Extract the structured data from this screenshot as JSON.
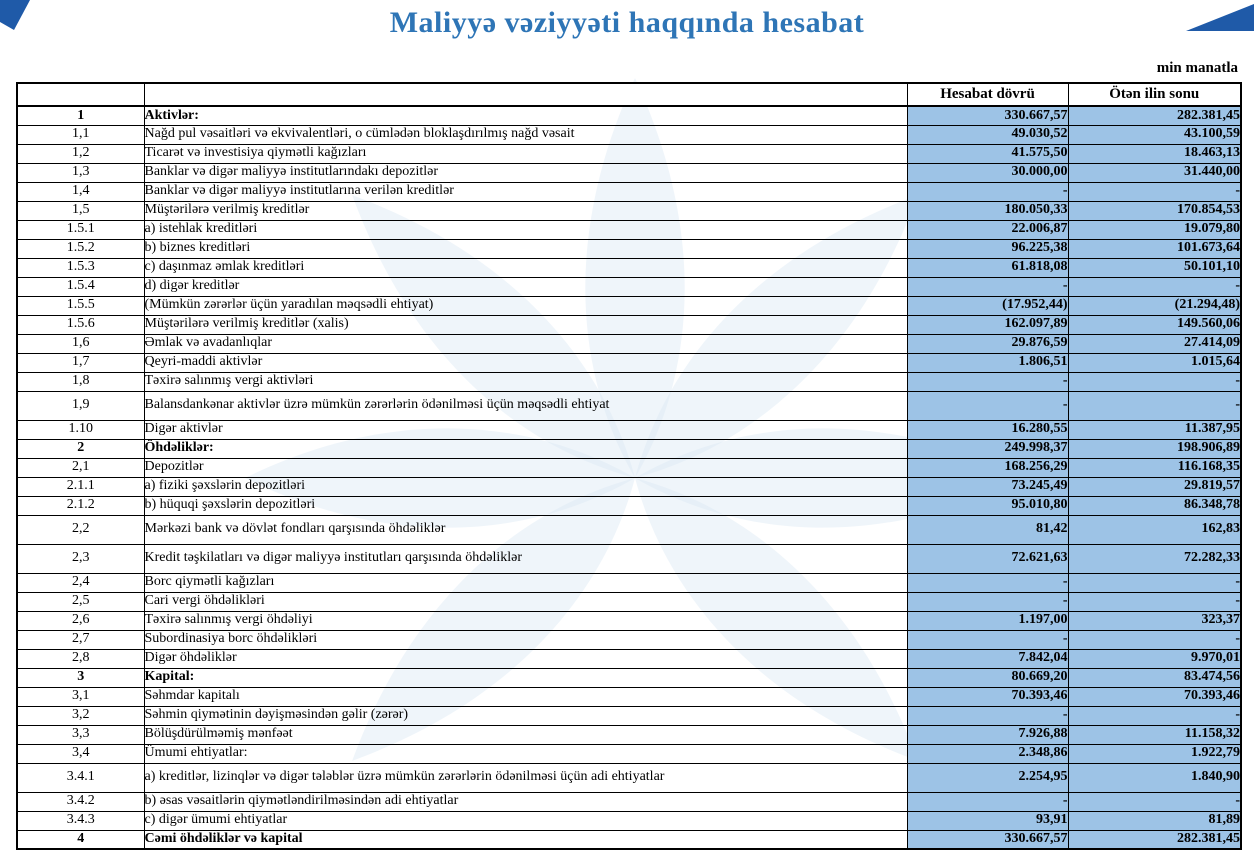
{
  "title": "Maliyyə vəziyyəti haqqında hesabat",
  "unit_label": "min manatla",
  "colors": {
    "title_blue": "#2E75B6",
    "value_cell_blue": "#9DC3E6",
    "corner_navy": "#1F5AA8",
    "watermark_pale_blue": "#DCE9F4"
  },
  "table": {
    "columns": {
      "number": "",
      "description": "",
      "period": "Hesabat dövrü",
      "previous": "Ötən ilin sonu"
    },
    "rows": [
      {
        "num": "1",
        "label": "Aktivlər:",
        "v1": "330.667,57",
        "v2": "282.381,45",
        "section": true
      },
      {
        "num": "1,1",
        "label": "Nağd pul vəsaitləri və  ekvivalentləri, o cümlədən bloklaşdırılmış nağd vəsait",
        "v1": "49.030,52",
        "v2": "43.100,59"
      },
      {
        "num": "1,2",
        "label": "Ticarət və investisiya qiymətli kağızları",
        "v1": "41.575,50",
        "v2": "18.463,13"
      },
      {
        "num": "1,3",
        "label": "Banklar və digər maliyyə institutlarındakı depozitlər",
        "v1": "30.000,00",
        "v2": "31.440,00"
      },
      {
        "num": "1,4",
        "label": "Banklar və digər maliyyə institutlarına verilən kreditlər",
        "v1": "-",
        "v2": "-"
      },
      {
        "num": "1,5",
        "label": "Müştərilərə verilmiş kreditlər",
        "v1": "180.050,33",
        "v2": "170.854,53"
      },
      {
        "num": "1.5.1",
        "label": "a) istehlak kreditləri",
        "v1": "22.006,87",
        "v2": "19.079,80"
      },
      {
        "num": "1.5.2",
        "label": "b) biznes kreditləri",
        "v1": "96.225,38",
        "v2": "101.673,64"
      },
      {
        "num": "1.5.3",
        "label": "c) daşınmaz əmlak kreditləri",
        "v1": "61.818,08",
        "v2": "50.101,10"
      },
      {
        "num": "1.5.4",
        "label": "d) digər kreditlər",
        "v1": "-",
        "v2": "-"
      },
      {
        "num": "1.5.5",
        "label": "(Mümkün zərərlər üçün yaradılan məqsədli ehtiyat)",
        "v1": "(17.952,44)",
        "v2": "(21.294,48)"
      },
      {
        "num": "1.5.6",
        "label": "Müştərilərə verilmiş kreditlər (xalis)",
        "v1": "162.097,89",
        "v2": "149.560,06"
      },
      {
        "num": "1,6",
        "label": "Əmlak və avadanlıqlar",
        "v1": "29.876,59",
        "v2": "27.414,09"
      },
      {
        "num": "1,7",
        "label": "Qeyri-maddi aktivlər",
        "v1": "1.806,51",
        "v2": "1.015,64"
      },
      {
        "num": "1,8",
        "label": "Təxirə salınmış vergi aktivləri",
        "v1": "-",
        "v2": "-"
      },
      {
        "num": "1,9",
        "label": "Balansdankənar aktivlər üzrə mümkün zərərlərin ödənilməsi üçün məqsədli ehtiyat",
        "v1": "-",
        "v2": "-"
      },
      {
        "num": "1.10",
        "label": "Digər aktivlər",
        "v1": "16.280,55",
        "v2": "11.387,95"
      },
      {
        "num": "2",
        "label": "Öhdəliklər:",
        "v1": "249.998,37",
        "v2": "198.906,89",
        "section": true
      },
      {
        "num": "2,1",
        "label": "Depozitlər",
        "v1": "168.256,29",
        "v2": "116.168,35"
      },
      {
        "num": "2.1.1",
        "label": "a) fiziki şəxslərin depozitləri",
        "v1": "73.245,49",
        "v2": "29.819,57"
      },
      {
        "num": "2.1.2",
        "label": "b) hüquqi şəxslərin depozitləri",
        "v1": "95.010,80",
        "v2": "86.348,78"
      },
      {
        "num": "2,2",
        "label": "Mərkəzi bank və dövlət fondları qarşısında öhdəliklər",
        "v1": "81,42",
        "v2": "162,83"
      },
      {
        "num": "2,3",
        "label": "Kredit təşkilatları və digər maliyyə institutları qarşısında öhdəliklər",
        "v1": "72.621,63",
        "v2": "72.282,33"
      },
      {
        "num": "2,4",
        "label": "Borc qiymətli kağızları",
        "v1": "-",
        "v2": "-"
      },
      {
        "num": "2,5",
        "label": "Cari vergi öhdəlikləri",
        "v1": "-",
        "v2": "-"
      },
      {
        "num": "2,6",
        "label": "Təxirə salınmış vergi öhdəliyi",
        "v1": "1.197,00",
        "v2": "323,37"
      },
      {
        "num": "2,7",
        "label": "Subordinasiya borc öhdəlikləri",
        "v1": "-",
        "v2": "-"
      },
      {
        "num": "2,8",
        "label": "Digər öhdəliklər",
        "v1": "7.842,04",
        "v2": "9.970,01"
      },
      {
        "num": "3",
        "label": "Kapital:",
        "v1": "80.669,20",
        "v2": "83.474,56",
        "section": true
      },
      {
        "num": "3,1",
        "label": "Səhmdar kapitalı",
        "v1": "70.393,46",
        "v2": "70.393,46"
      },
      {
        "num": "3,2",
        "label": "Səhmin qiymətinin dəyişməsindən gəlir (zərər)",
        "v1": "-",
        "v2": "-"
      },
      {
        "num": "3,3",
        "label": "Bölüşdürülməmiş mənfəət",
        "v1": "7.926,88",
        "v2": "11.158,32"
      },
      {
        "num": "3,4",
        "label": "Ümumi ehtiyatlar:",
        "v1": "2.348,86",
        "v2": "1.922,79"
      },
      {
        "num": "3.4.1",
        "label": "a) kreditlər, lizinqlər və digər tələblər üzrə mümkün zərərlərin ödənilməsi üçün adi ehtiyatlar",
        "v1": "2.254,95",
        "v2": "1.840,90"
      },
      {
        "num": "3.4.2",
        "label": "b) əsas vəsaitlərin qiymətləndirilməsindən adi ehtiyatlar",
        "v1": "-",
        "v2": "-"
      },
      {
        "num": "3.4.3",
        "label": "c) digər ümumi ehtiyatlar",
        "v1": "93,91",
        "v2": "81,89"
      },
      {
        "num": "4",
        "label": "Cəmi öhdəliklər və kapital",
        "v1": "330.667,57",
        "v2": "282.381,45",
        "section": true
      }
    ]
  }
}
